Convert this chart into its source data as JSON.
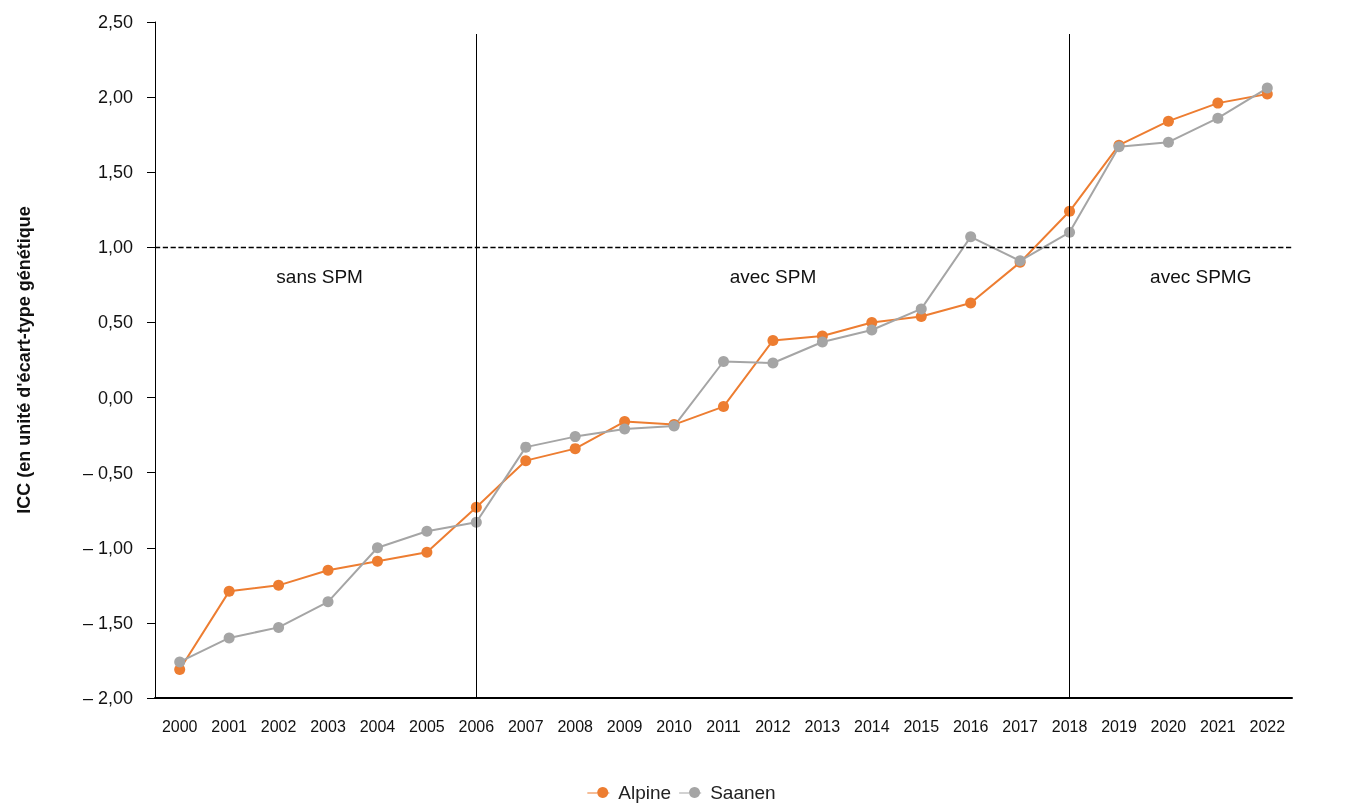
{
  "chart_data": {
    "type": "line",
    "ylabel": "ICC (en unité d'écart-type génétique",
    "categories": [
      "2000",
      "2001",
      "2002",
      "2003",
      "2004",
      "2005",
      "2006",
      "2007",
      "2008",
      "2009",
      "2010",
      "2011",
      "2012",
      "2013",
      "2014",
      "2015",
      "2016",
      "2017",
      "2018",
      "2019",
      "2020",
      "2021",
      "2022"
    ],
    "series": [
      {
        "name": "Alpine",
        "color": "#ed7d31",
        "values": [
          -1.81,
          -1.29,
          -1.25,
          -1.15,
          -1.09,
          -1.03,
          -0.73,
          -0.42,
          -0.34,
          -0.16,
          -0.18,
          -0.06,
          0.38,
          0.41,
          0.5,
          0.54,
          0.63,
          0.9,
          1.24,
          1.68,
          1.84,
          1.96,
          2.02
        ]
      },
      {
        "name": "Saanen",
        "color": "#a5a5a5",
        "values": [
          -1.76,
          -1.6,
          -1.53,
          -1.36,
          -1.0,
          -0.89,
          -0.83,
          -0.33,
          -0.26,
          -0.21,
          -0.19,
          0.24,
          0.23,
          0.37,
          0.45,
          0.59,
          1.07,
          0.91,
          1.1,
          1.67,
          1.7,
          1.86,
          2.06
        ]
      }
    ],
    "ylim": [
      -2,
      2.5
    ],
    "yticks": [
      {
        "value": -2,
        "label": "– 2,00"
      },
      {
        "value": -1.5,
        "label": "– 1,50"
      },
      {
        "value": -1,
        "label": "– 1,00"
      },
      {
        "value": -0.5,
        "label": "– 0,50"
      },
      {
        "value": 0,
        "label": "0,00"
      },
      {
        "value": 0.5,
        "label": "0,50"
      },
      {
        "value": 1,
        "label": "1,00"
      },
      {
        "value": 1.5,
        "label": "1,50"
      },
      {
        "value": 2,
        "label": "2,00"
      },
      {
        "value": 2.5,
        "label": "2,50"
      }
    ],
    "ref_lines": [
      {
        "axis": "x",
        "value": "2006",
        "label": null,
        "color": "#000000",
        "line_style": "solid"
      },
      {
        "axis": "x",
        "value": "2018",
        "label": null,
        "color": "#000000",
        "line_style": "solid"
      },
      {
        "axis": "y",
        "value": 1,
        "label": null,
        "color": "#000000",
        "line_style": "dashed"
      }
    ],
    "annotations": [
      "sans SPM",
      "avec SPM",
      "avec SPMG"
    ],
    "marker": "circle",
    "line_style": "solid",
    "grid": false,
    "legend": "bottom"
  }
}
